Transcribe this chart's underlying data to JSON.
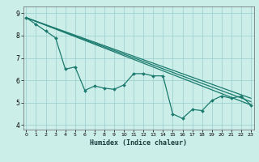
{
  "xlabel": "Humidex (Indice chaleur)",
  "x_values": [
    0,
    1,
    2,
    3,
    4,
    5,
    6,
    7,
    8,
    9,
    10,
    11,
    12,
    13,
    14,
    15,
    16,
    17,
    18,
    19,
    20,
    21,
    22,
    23
  ],
  "line1": [
    8.8,
    8.5,
    8.2,
    7.9,
    6.5,
    6.6,
    5.55,
    5.75,
    5.65,
    5.6,
    5.8,
    6.3,
    6.3,
    6.2,
    6.2,
    4.5,
    4.3,
    4.7,
    4.65,
    5.1,
    5.3,
    5.2,
    5.3,
    4.9
  ],
  "line2_x": [
    0,
    23
  ],
  "line2_y": [
    8.8,
    4.9
  ],
  "line3_x": [
    0,
    23
  ],
  "line3_y": [
    8.8,
    5.2
  ],
  "line4_x": [
    0,
    23
  ],
  "line4_y": [
    8.8,
    5.05
  ],
  "ylim": [
    3.8,
    9.3
  ],
  "xlim": [
    -0.3,
    23.3
  ],
  "yticks": [
    4,
    5,
    6,
    7,
    8,
    9
  ],
  "xticks": [
    0,
    1,
    2,
    3,
    4,
    5,
    6,
    7,
    8,
    9,
    10,
    11,
    12,
    13,
    14,
    15,
    16,
    17,
    18,
    19,
    20,
    21,
    22,
    23
  ],
  "bg_color": "#cceee8",
  "grid_color": "#99cccc",
  "line_color": "#1a7a6e",
  "marker": "D",
  "marker_size": 2.0,
  "line_width": 0.9
}
